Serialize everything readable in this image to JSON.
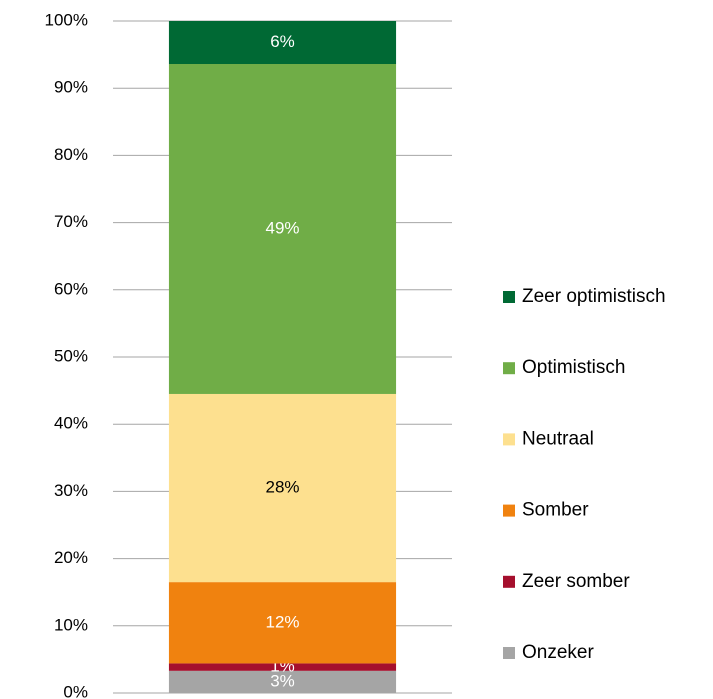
{
  "chart_data": {
    "type": "stacked_bar",
    "categories": [
      null
    ],
    "series": [
      {
        "name": "Onzeker",
        "color": "#a5a5a5",
        "values": [
          3.3
        ],
        "value_labels": [
          "3%"
        ]
      },
      {
        "name": "Zeer somber",
        "color": "#a50f2d",
        "values": [
          1.1
        ],
        "value_labels": [
          "1%"
        ]
      },
      {
        "name": "Somber",
        "color": "#f0820f",
        "values": [
          12.1
        ],
        "value_labels": [
          "12%"
        ]
      },
      {
        "name": "Neutraal",
        "color": "#fde08f",
        "values": [
          28
        ],
        "value_labels": [
          "28%"
        ]
      },
      {
        "name": "Optimistisch",
        "color": "#70ad47",
        "values": [
          49.1
        ],
        "value_labels": [
          "49%"
        ]
      },
      {
        "name": "Zeer optimistisch",
        "color": "#006934",
        "values": [
          6.4
        ],
        "value_labels": [
          "6%"
        ]
      }
    ],
    "ylim": [
      0,
      100
    ],
    "yticks": [
      {
        "value": 0,
        "label": "0%"
      },
      {
        "value": 10,
        "label": "10%"
      },
      {
        "value": 20,
        "label": "20%"
      },
      {
        "value": 30,
        "label": "30%"
      },
      {
        "value": 40,
        "label": "40%"
      },
      {
        "value": 50,
        "label": "50%"
      },
      {
        "value": 60,
        "label": "60%"
      },
      {
        "value": 70,
        "label": "70%"
      },
      {
        "value": 80,
        "label": "80%"
      },
      {
        "value": 90,
        "label": "90%"
      },
      {
        "value": 100,
        "label": "100%"
      }
    ],
    "grid": true,
    "legend": "right"
  }
}
